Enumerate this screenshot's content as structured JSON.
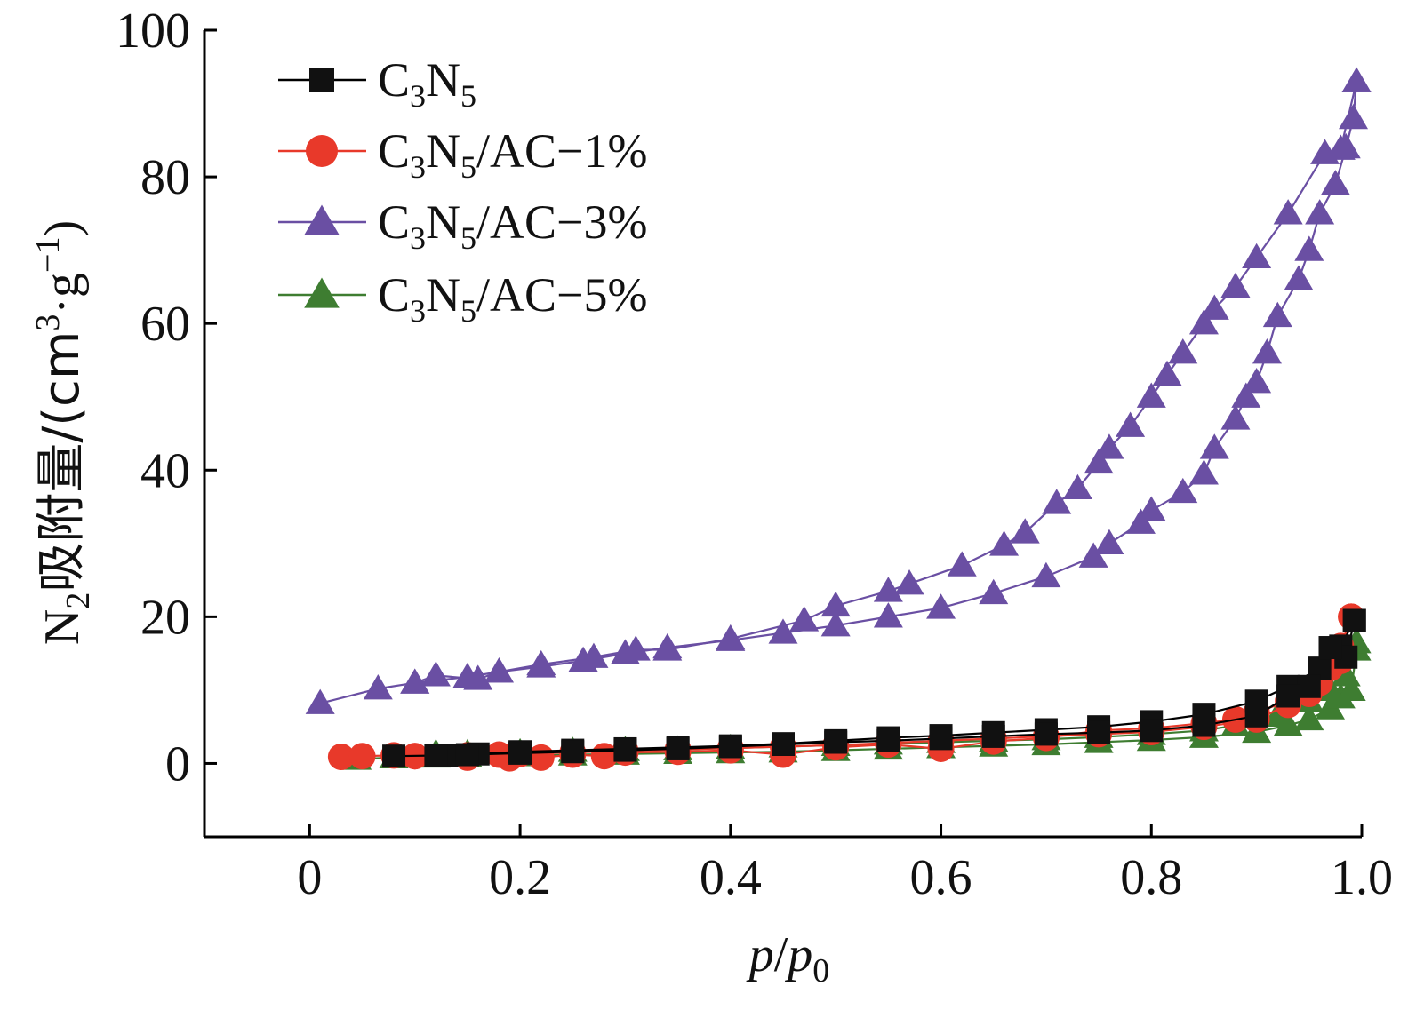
{
  "chart_data": {
    "type": "line",
    "xlabel": {
      "italic_a": "p",
      "slash": "/",
      "italic_b": "p",
      "sub": "0"
    },
    "ylabel": {
      "pre": "N",
      "pre_sub": "2",
      "cjk": "吸附量/(cm",
      "sup1": "3",
      "mid": "·g",
      "sup2": "−1",
      "post": ")"
    },
    "xlim": [
      -0.1,
      1.0
    ],
    "ylim": [
      -10,
      100
    ],
    "x_ticks": [
      0,
      0.2,
      0.4,
      0.6,
      0.8,
      1.0
    ],
    "x_tick_labels": [
      "0",
      "0.2",
      "0.4",
      "0.6",
      "0.8",
      "1.0"
    ],
    "y_ticks": [
      0,
      20,
      40,
      60,
      80,
      100
    ],
    "y_tick_labels": [
      "0",
      "20",
      "40",
      "60",
      "80",
      "100"
    ],
    "grid": false,
    "legend_position": "top-left",
    "series": [
      {
        "key": "c3n5",
        "name_parts": {
          "a": "C",
          "sub1": "3",
          "b": "N",
          "sub2": "5",
          "suffix": ""
        },
        "color": "#000000",
        "marker_color": "#111111",
        "marker": "square",
        "adsorption": [
          [
            0.08,
            1.0
          ],
          [
            0.13,
            1.1
          ],
          [
            0.16,
            1.3
          ],
          [
            0.2,
            1.6
          ],
          [
            0.25,
            1.8
          ],
          [
            0.3,
            2.0
          ],
          [
            0.35,
            2.2
          ],
          [
            0.4,
            2.4
          ],
          [
            0.45,
            2.7
          ],
          [
            0.5,
            3.1
          ],
          [
            0.55,
            3.5
          ],
          [
            0.6,
            3.8
          ],
          [
            0.65,
            4.2
          ],
          [
            0.7,
            4.6
          ],
          [
            0.75,
            5.0
          ],
          [
            0.8,
            5.7
          ],
          [
            0.85,
            6.7
          ],
          [
            0.9,
            8.5
          ],
          [
            0.93,
            10.5
          ],
          [
            0.96,
            13.0
          ],
          [
            0.98,
            16.0
          ],
          [
            0.993,
            19.5
          ]
        ],
        "desorption": [
          [
            0.993,
            19.5
          ],
          [
            0.985,
            14.5
          ],
          [
            0.97,
            15.8
          ],
          [
            0.95,
            10.5
          ],
          [
            0.93,
            9.2
          ],
          [
            0.9,
            6.5
          ],
          [
            0.85,
            5.2
          ],
          [
            0.8,
            4.5
          ],
          [
            0.75,
            4.2
          ],
          [
            0.7,
            4.0
          ],
          [
            0.65,
            3.7
          ],
          [
            0.6,
            3.4
          ],
          [
            0.55,
            3.1
          ],
          [
            0.5,
            2.9
          ],
          [
            0.45,
            2.6
          ],
          [
            0.4,
            2.3
          ],
          [
            0.35,
            2.0
          ],
          [
            0.3,
            1.8
          ],
          [
            0.25,
            1.6
          ],
          [
            0.2,
            1.4
          ],
          [
            0.15,
            1.2
          ],
          [
            0.12,
            1.1
          ]
        ]
      },
      {
        "key": "ac1",
        "name_parts": {
          "a": "C",
          "sub1": "3",
          "b": "N",
          "sub2": "5",
          "suffix": "/AC−1%"
        },
        "color": "#e8392a",
        "marker_color": "#e8392a",
        "marker": "circle",
        "adsorption": [
          [
            0.03,
            0.9
          ],
          [
            0.05,
            1.0
          ],
          [
            0.08,
            1.1
          ],
          [
            0.1,
            1.0
          ],
          [
            0.15,
            0.8
          ],
          [
            0.18,
            1.2
          ],
          [
            0.19,
            0.7
          ],
          [
            0.22,
            0.8
          ],
          [
            0.25,
            1.2
          ],
          [
            0.28,
            1.0
          ],
          [
            0.3,
            1.5
          ],
          [
            0.35,
            1.6
          ],
          [
            0.4,
            1.8
          ],
          [
            0.45,
            1.2
          ],
          [
            0.5,
            2.2
          ],
          [
            0.55,
            2.6
          ],
          [
            0.6,
            2.0
          ],
          [
            0.65,
            3.0
          ],
          [
            0.7,
            3.5
          ],
          [
            0.75,
            4.5
          ],
          [
            0.8,
            4.8
          ],
          [
            0.85,
            5.5
          ],
          [
            0.88,
            6.0
          ],
          [
            0.9,
            7.0
          ],
          [
            0.93,
            8.5
          ],
          [
            0.95,
            9.5
          ],
          [
            0.97,
            13.0
          ],
          [
            0.98,
            16.0
          ],
          [
            0.99,
            20.0
          ]
        ],
        "desorption": [
          [
            0.99,
            20.0
          ],
          [
            0.98,
            14.0
          ],
          [
            0.96,
            11.0
          ],
          [
            0.93,
            8.0
          ],
          [
            0.9,
            6.0
          ],
          [
            0.85,
            5.0
          ],
          [
            0.8,
            4.3
          ],
          [
            0.75,
            4.0
          ],
          [
            0.7,
            3.7
          ],
          [
            0.65,
            3.4
          ],
          [
            0.6,
            3.1
          ],
          [
            0.55,
            2.8
          ],
          [
            0.5,
            2.5
          ],
          [
            0.45,
            2.3
          ],
          [
            0.4,
            2.1
          ],
          [
            0.35,
            1.9
          ],
          [
            0.3,
            1.7
          ],
          [
            0.25,
            1.5
          ],
          [
            0.2,
            1.3
          ],
          [
            0.15,
            1.1
          ],
          [
            0.1,
            1.0
          ]
        ]
      },
      {
        "key": "ac3",
        "name_parts": {
          "a": "C",
          "sub1": "3",
          "b": "N",
          "sub2": "5",
          "suffix": "/AC−3%"
        },
        "color": "#6a4fa3",
        "marker_color": "#6a4fa3",
        "marker": "triangle",
        "adsorption": [
          [
            0.01,
            8.2
          ],
          [
            0.065,
            10.2
          ],
          [
            0.1,
            11.0
          ],
          [
            0.15,
            11.8
          ],
          [
            0.18,
            12.5
          ],
          [
            0.22,
            13.2
          ],
          [
            0.26,
            14.0
          ],
          [
            0.3,
            15.0
          ],
          [
            0.34,
            15.8
          ],
          [
            0.4,
            16.8
          ],
          [
            0.45,
            17.8
          ],
          [
            0.5,
            18.8
          ],
          [
            0.55,
            20.0
          ],
          [
            0.6,
            21.2
          ],
          [
            0.65,
            23.2
          ],
          [
            0.7,
            25.5
          ],
          [
            0.745,
            28.2
          ],
          [
            0.76,
            30.0
          ],
          [
            0.79,
            32.8
          ],
          [
            0.8,
            34.5
          ],
          [
            0.83,
            37.0
          ],
          [
            0.85,
            39.5
          ],
          [
            0.86,
            43.0
          ],
          [
            0.88,
            47.0
          ],
          [
            0.89,
            50.0
          ],
          [
            0.9,
            52.0
          ],
          [
            0.91,
            56.0
          ],
          [
            0.92,
            61.0
          ],
          [
            0.94,
            66.0
          ],
          [
            0.95,
            70.0
          ],
          [
            0.96,
            75.0
          ],
          [
            0.975,
            79.0
          ],
          [
            0.985,
            84.0
          ],
          [
            0.992,
            88.0
          ],
          [
            0.995,
            93.0
          ]
        ],
        "desorption": [
          [
            0.995,
            93.0
          ],
          [
            0.98,
            83.8
          ],
          [
            0.965,
            83.2
          ],
          [
            0.93,
            75.0
          ],
          [
            0.9,
            69.0
          ],
          [
            0.88,
            65.0
          ],
          [
            0.86,
            62.0
          ],
          [
            0.85,
            60.0
          ],
          [
            0.83,
            56.0
          ],
          [
            0.815,
            53.0
          ],
          [
            0.8,
            50.0
          ],
          [
            0.78,
            46.0
          ],
          [
            0.76,
            43.0
          ],
          [
            0.75,
            41.0
          ],
          [
            0.73,
            37.5
          ],
          [
            0.71,
            35.5
          ],
          [
            0.68,
            31.5
          ],
          [
            0.66,
            29.8
          ],
          [
            0.62,
            27.0
          ],
          [
            0.57,
            24.5
          ],
          [
            0.55,
            23.5
          ],
          [
            0.5,
            21.5
          ],
          [
            0.47,
            19.5
          ],
          [
            0.4,
            17.0
          ],
          [
            0.34,
            15.5
          ],
          [
            0.31,
            15.5
          ],
          [
            0.27,
            14.5
          ],
          [
            0.22,
            13.5
          ],
          [
            0.18,
            12.5
          ],
          [
            0.16,
            11.5
          ],
          [
            0.12,
            12.0
          ],
          [
            0.1,
            11.0
          ]
        ]
      },
      {
        "key": "ac5",
        "name_parts": {
          "a": "C",
          "sub1": "3",
          "b": "N",
          "sub2": "5",
          "suffix": "/AC−5%"
        },
        "color": "#3e7d31",
        "marker_color": "#3e7d31",
        "marker": "triangle",
        "adsorption": [
          [
            0.045,
            0.6
          ],
          [
            0.08,
            0.8
          ],
          [
            0.12,
            0.9
          ],
          [
            0.15,
            1.0
          ],
          [
            0.2,
            1.1
          ],
          [
            0.25,
            1.2
          ],
          [
            0.3,
            1.3
          ],
          [
            0.35,
            1.4
          ],
          [
            0.4,
            1.5
          ],
          [
            0.45,
            1.6
          ],
          [
            0.5,
            1.8
          ],
          [
            0.55,
            2.0
          ],
          [
            0.6,
            2.2
          ],
          [
            0.65,
            2.4
          ],
          [
            0.7,
            2.6
          ],
          [
            0.75,
            2.9
          ],
          [
            0.8,
            3.2
          ],
          [
            0.85,
            3.6
          ],
          [
            0.9,
            4.3
          ],
          [
            0.93,
            5.2
          ],
          [
            0.95,
            6.0
          ],
          [
            0.97,
            7.5
          ],
          [
            0.98,
            9.0
          ],
          [
            0.99,
            10.0
          ],
          [
            0.995,
            15.5
          ]
        ],
        "desorption": [
          [
            0.995,
            16.5
          ],
          [
            0.985,
            12.0
          ],
          [
            0.97,
            10.0
          ],
          [
            0.95,
            8.5
          ],
          [
            0.92,
            6.5
          ],
          [
            0.88,
            5.2
          ],
          [
            0.85,
            4.5
          ],
          [
            0.8,
            4.0
          ],
          [
            0.75,
            3.6
          ],
          [
            0.7,
            3.3
          ],
          [
            0.65,
            3.1
          ],
          [
            0.6,
            2.9
          ],
          [
            0.55,
            2.7
          ],
          [
            0.5,
            2.5
          ],
          [
            0.45,
            2.3
          ],
          [
            0.4,
            2.1
          ],
          [
            0.35,
            1.9
          ],
          [
            0.3,
            1.8
          ],
          [
            0.25,
            1.7
          ],
          [
            0.2,
            1.5
          ],
          [
            0.15,
            1.4
          ],
          [
            0.12,
            1.4
          ]
        ]
      }
    ]
  }
}
